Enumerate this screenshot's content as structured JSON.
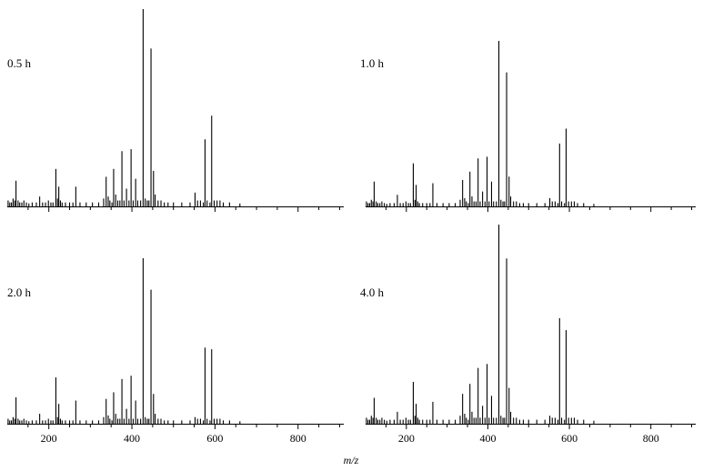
{
  "xlabel": "m/z",
  "chart_data": [
    {
      "type": "bar",
      "panel_label": "0.5 h",
      "xlim": [
        100,
        910
      ],
      "x_ticks": [
        200,
        400,
        600,
        800
      ],
      "x_tick_labels": [
        "200",
        "400",
        "600",
        "800"
      ],
      "peaks_x": [
        102,
        106,
        110,
        114,
        118,
        121,
        126,
        130,
        135,
        140,
        146,
        152,
        160,
        170,
        178,
        185,
        192,
        199,
        205,
        210,
        217,
        221,
        224,
        228,
        232,
        240,
        250,
        258,
        265,
        275,
        290,
        305,
        320,
        332,
        338,
        343,
        347,
        352,
        356,
        361,
        366,
        371,
        376,
        381,
        387,
        393,
        398,
        403,
        409,
        414,
        421,
        427,
        432,
        437,
        441,
        446,
        452,
        456,
        463,
        470,
        478,
        487,
        500,
        520,
        540,
        552,
        558,
        565,
        572,
        576,
        581,
        588,
        592,
        598,
        605,
        612,
        620,
        635,
        660
      ],
      "peaks_y": [
        3,
        2,
        2,
        4,
        3,
        13,
        3,
        2,
        2,
        3,
        2,
        1.5,
        2,
        2,
        5,
        2,
        2,
        3,
        2,
        2,
        19,
        4,
        10,
        3,
        2,
        2,
        2,
        2,
        10,
        2,
        2,
        2,
        2,
        4,
        15,
        5,
        3,
        2,
        19,
        6,
        3,
        3,
        28,
        3,
        9,
        3,
        29,
        3,
        14,
        3,
        3,
        100,
        4,
        3,
        3,
        80,
        18,
        6,
        3,
        3,
        2,
        2,
        2,
        2,
        2,
        7,
        3,
        3,
        2,
        34,
        3,
        2,
        46,
        3,
        3,
        3,
        2,
        2,
        1.5
      ]
    },
    {
      "type": "bar",
      "panel_label": "1.0 h",
      "xlim": [
        100,
        910
      ],
      "x_ticks": [
        200,
        400,
        600,
        800
      ],
      "x_tick_labels": [
        "200",
        "400",
        "600",
        "800"
      ],
      "peaks_x": [
        102,
        106,
        110,
        114,
        118,
        121,
        126,
        130,
        135,
        140,
        146,
        152,
        160,
        170,
        178,
        185,
        192,
        199,
        205,
        210,
        217,
        221,
        224,
        228,
        232,
        240,
        250,
        258,
        265,
        275,
        290,
        305,
        320,
        332,
        338,
        343,
        347,
        352,
        356,
        361,
        366,
        371,
        376,
        381,
        387,
        393,
        398,
        403,
        409,
        414,
        421,
        427,
        432,
        437,
        441,
        446,
        452,
        456,
        463,
        470,
        478,
        487,
        500,
        520,
        540,
        552,
        558,
        565,
        572,
        576,
        581,
        588,
        592,
        598,
        605,
        612,
        620,
        635,
        660
      ],
      "peaks_y": [
        3,
        2,
        2,
        4,
        3,
        15,
        3,
        2,
        2,
        3,
        2,
        1.5,
        2,
        2,
        7,
        2,
        2,
        3,
        2,
        2,
        26,
        4,
        13,
        3,
        2,
        2,
        2,
        2,
        14,
        2,
        2,
        2,
        2,
        4,
        16,
        5,
        3,
        2,
        21,
        6,
        3,
        3,
        29,
        3,
        9,
        3,
        30,
        3,
        15,
        3,
        3,
        100,
        4,
        3,
        3,
        81,
        18,
        6,
        3,
        3,
        2,
        2,
        2,
        2,
        2,
        5,
        3,
        3,
        2,
        38,
        3,
        2,
        47,
        3,
        3,
        3,
        2,
        2,
        1.5
      ]
    },
    {
      "type": "bar",
      "panel_label": "2.0 h",
      "xlim": [
        100,
        910
      ],
      "x_ticks": [
        200,
        400,
        600,
        800
      ],
      "x_tick_labels": [
        "200",
        "400",
        "600",
        "800"
      ],
      "peaks_x": [
        102,
        106,
        110,
        114,
        118,
        121,
        126,
        130,
        135,
        140,
        146,
        152,
        160,
        170,
        178,
        185,
        192,
        199,
        205,
        210,
        217,
        221,
        224,
        228,
        232,
        240,
        250,
        258,
        265,
        275,
        290,
        305,
        320,
        332,
        338,
        343,
        347,
        352,
        356,
        361,
        366,
        371,
        376,
        381,
        387,
        393,
        398,
        403,
        409,
        414,
        421,
        427,
        432,
        437,
        441,
        446,
        452,
        456,
        463,
        470,
        478,
        487,
        500,
        520,
        540,
        552,
        558,
        565,
        572,
        576,
        581,
        588,
        592,
        598,
        605,
        612,
        620,
        635,
        660
      ],
      "peaks_y": [
        3,
        2,
        2,
        4,
        3,
        16,
        3,
        2,
        2,
        3,
        2,
        1.5,
        2,
        2,
        6,
        2,
        2,
        3,
        2,
        2,
        28,
        4,
        12,
        3,
        2,
        2,
        2,
        2,
        14,
        2,
        2,
        2,
        2,
        4,
        15,
        5,
        3,
        2,
        19,
        6,
        3,
        3,
        27,
        3,
        9,
        3,
        29,
        3,
        14,
        3,
        3,
        100,
        4,
        3,
        3,
        81,
        18,
        6,
        3,
        3,
        2,
        2,
        2,
        2,
        2,
        4,
        3,
        3,
        2,
        46,
        3,
        2,
        45,
        3,
        3,
        3,
        2,
        2,
        1.5
      ]
    },
    {
      "type": "bar",
      "panel_label": "4.0 h",
      "xlim": [
        100,
        910
      ],
      "x_ticks": [
        200,
        400,
        600,
        800
      ],
      "x_tick_labels": [
        "200",
        "400",
        "600",
        "800"
      ],
      "peaks_x": [
        102,
        106,
        110,
        114,
        118,
        121,
        126,
        130,
        135,
        140,
        146,
        152,
        160,
        170,
        178,
        185,
        192,
        199,
        205,
        210,
        217,
        221,
        224,
        228,
        232,
        240,
        250,
        258,
        265,
        275,
        290,
        305,
        320,
        332,
        338,
        343,
        347,
        352,
        356,
        361,
        366,
        371,
        376,
        381,
        387,
        393,
        398,
        403,
        409,
        414,
        421,
        427,
        432,
        437,
        441,
        446,
        452,
        456,
        463,
        470,
        478,
        487,
        500,
        520,
        540,
        552,
        558,
        565,
        572,
        576,
        581,
        588,
        592,
        598,
        605,
        612,
        620,
        635,
        660
      ],
      "peaks_y": [
        3,
        2,
        2,
        4,
        3,
        13,
        3,
        2,
        2,
        3,
        2,
        1.5,
        2,
        2,
        6,
        2,
        2,
        3,
        2,
        2,
        21,
        4,
        10,
        3,
        2,
        2,
        2,
        2,
        11,
        2,
        2,
        2,
        2,
        4,
        15,
        5,
        3,
        2,
        20,
        6,
        3,
        3,
        28,
        3,
        9,
        3,
        30,
        3,
        14,
        3,
        3,
        100,
        4,
        3,
        3,
        83,
        18,
        6,
        3,
        3,
        2,
        2,
        2,
        2,
        2,
        4,
        3,
        3,
        2,
        53,
        3,
        2,
        47,
        3,
        3,
        3,
        2,
        2,
        1.5
      ]
    }
  ]
}
